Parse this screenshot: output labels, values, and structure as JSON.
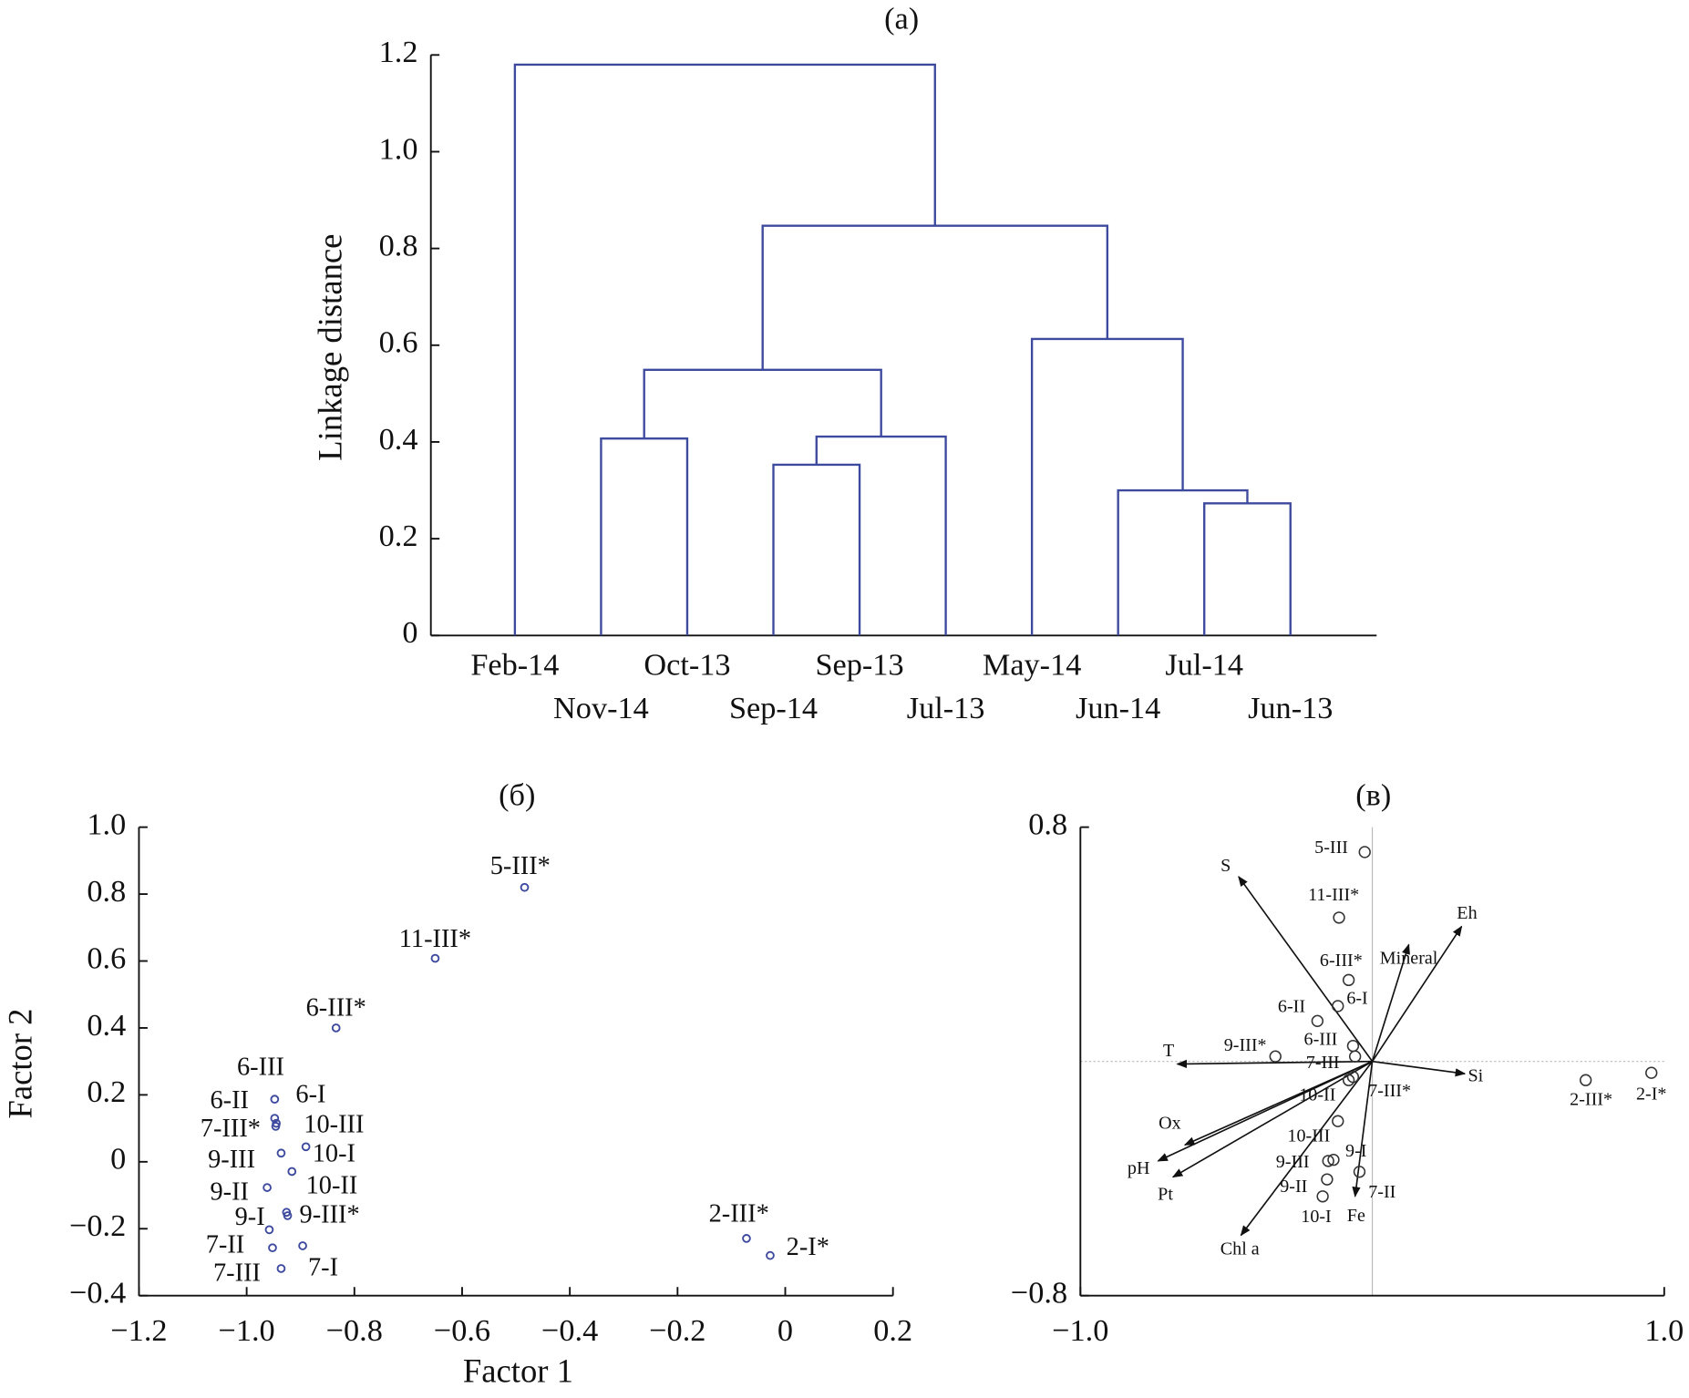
{
  "chart_data": [
    {
      "type": "dendrogram",
      "title": "(a)",
      "ylabel": "Linkage distance",
      "color": "#3d4a9e",
      "ylim": [
        0,
        1.2
      ],
      "yticks": [
        0,
        0.2,
        0.4,
        0.6,
        0.8,
        {
          "value": 1,
          "label": "1.0"
        },
        1.2
      ],
      "leaves": [
        "Feb-14",
        "Nov-14",
        "Oct-13",
        "Sep-14",
        "Sep-13",
        "Jul-13",
        "May-14",
        "Jun-14",
        "Jul-14",
        "Jun-13"
      ],
      "linkage": [
        [
          1,
          2,
          0.407
        ],
        [
          3,
          4,
          0.353
        ],
        [
          11,
          5,
          0.411
        ],
        [
          10,
          12,
          0.549
        ],
        [
          8,
          9,
          0.273
        ],
        [
          7,
          14,
          0.3
        ],
        [
          6,
          15,
          0.613
        ],
        [
          13,
          16,
          0.847
        ],
        [
          0,
          17,
          1.18
        ]
      ]
    },
    {
      "type": "scatter",
      "title": "(б)",
      "xlabel": "Factor 1",
      "ylabel": "Factor 2",
      "color": "#3d4a9e",
      "xlim": [
        -1.2,
        0.2
      ],
      "xticks": [
        {
          "value": -1.2,
          "label": "−1.2"
        },
        {
          "value": -1,
          "label": "−1.0"
        },
        {
          "value": -0.8,
          "label": "−0.8"
        },
        {
          "value": -0.6,
          "label": "−0.6"
        },
        {
          "value": -0.4,
          "label": "−0.4"
        },
        {
          "value": -0.2,
          "label": "−0.2"
        },
        0,
        0.2
      ],
      "ylim": [
        -0.4,
        1
      ],
      "yticks": [
        {
          "value": -0.4,
          "label": "−0.4"
        },
        {
          "value": -0.2,
          "label": "−0.2"
        },
        0,
        0.2,
        0.4,
        0.6,
        0.8,
        {
          "value": 1,
          "label": "1.0"
        }
      ],
      "point_labels": [
        "5-III*",
        "11-III*",
        "6-III*",
        "6-III",
        "6-II",
        "6-I",
        "7-III*",
        "10-III",
        "9-III",
        "10-I",
        "9-II",
        "10-II",
        "9-III*",
        "9-I",
        "7-II",
        "7-I",
        "7-III",
        "2-III*",
        "2-I*"
      ],
      "x": [
        -0.484,
        -0.65,
        -0.834,
        -0.948,
        -0.948,
        -0.945,
        -0.946,
        -0.89,
        -0.936,
        -0.916,
        -0.962,
        -0.926,
        -0.924,
        -0.958,
        -0.952,
        -0.896,
        -0.936,
        -0.072,
        -0.028
      ],
      "y": [
        0.82,
        0.608,
        0.4,
        0.187,
        0.13,
        0.115,
        0.106,
        0.045,
        0.026,
        -0.029,
        -0.077,
        -0.151,
        -0.161,
        -0.203,
        -0.257,
        -0.251,
        -0.319,
        -0.229,
        -0.28
      ]
    },
    {
      "type": "biplot",
      "title": "(в)",
      "color": "#333333",
      "xlim": [
        -1,
        1
      ],
      "xticks": [
        {
          "value": -1,
          "label": "−1.0"
        },
        {
          "value": 1,
          "label": "1.0"
        }
      ],
      "ylim": [
        -0.8,
        0.8
      ],
      "yticks": [
        {
          "value": -0.8,
          "label": "−0.8"
        },
        0.8
      ],
      "point_labels": [
        "5-III",
        "11-III*",
        "6-III*",
        "6-I",
        "6-II",
        "6-III",
        "7-III",
        "9-III*",
        "7-III*",
        "10-II",
        "10-III",
        "9-III",
        "9-I",
        "9-II",
        "7-II",
        "10-I",
        "2-III*",
        "2-I*"
      ],
      "x": [
        -0.026,
        -0.114,
        -0.081,
        -0.118,
        -0.188,
        -0.066,
        -0.059,
        -0.332,
        -0.066,
        -0.081,
        -0.118,
        -0.151,
        -0.133,
        -0.155,
        -0.044,
        -0.17,
        0.731,
        0.956
      ],
      "y": [
        0.715,
        0.491,
        0.278,
        0.189,
        0.138,
        0.053,
        0.017,
        0.017,
        -0.053,
        -0.064,
        -0.204,
        -0.34,
        -0.336,
        -0.403,
        -0.377,
        -0.461,
        -0.064,
        -0.039
      ],
      "vector_labels": [
        "S",
        "Mineral",
        "Eh",
        "T",
        "Si",
        "Ox",
        "pH",
        "Pt",
        "Chl a",
        "Fe"
      ],
      "vector_x": [
        -0.458,
        0.125,
        0.306,
        -0.668,
        0.317,
        -0.642,
        -0.734,
        -0.683,
        -0.45,
        -0.059
      ],
      "vector_y": [
        0.631,
        0.399,
        0.461,
        -0.009,
        -0.042,
        -0.285,
        -0.34,
        -0.395,
        -0.594,
        -0.461
      ]
    }
  ]
}
